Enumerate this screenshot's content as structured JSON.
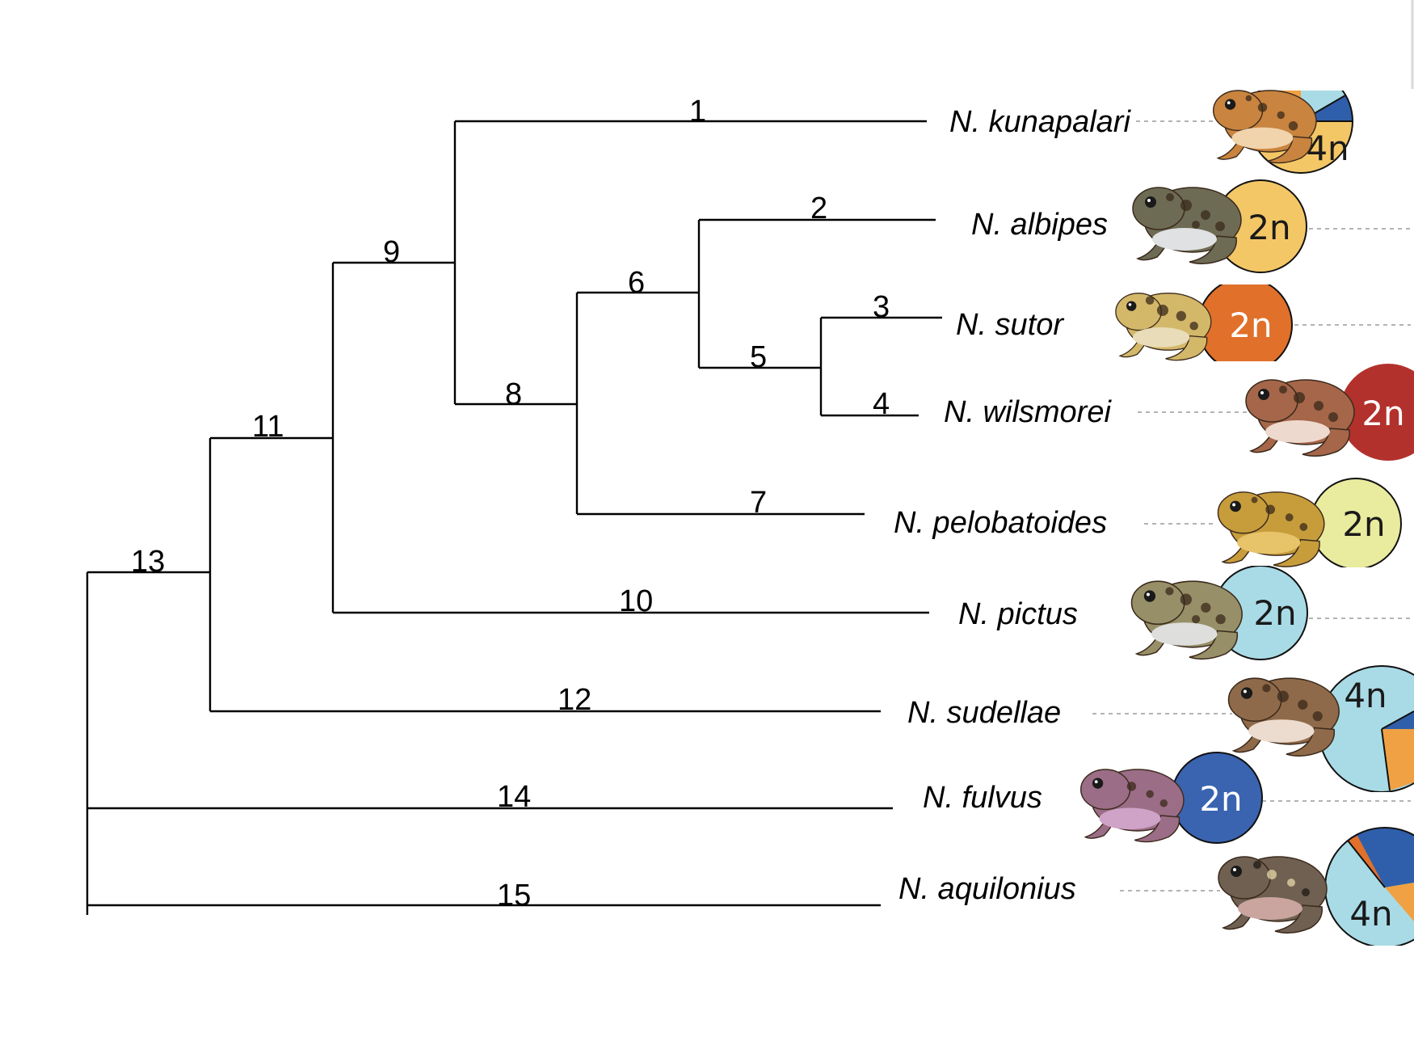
{
  "tree": {
    "nodes": [
      {
        "id": "1"
      },
      {
        "id": "2"
      },
      {
        "id": "3"
      },
      {
        "id": "4"
      },
      {
        "id": "5"
      },
      {
        "id": "6"
      },
      {
        "id": "7"
      },
      {
        "id": "8"
      },
      {
        "id": "9"
      },
      {
        "id": "10"
      },
      {
        "id": "11"
      },
      {
        "id": "12"
      },
      {
        "id": "13"
      },
      {
        "id": "14"
      },
      {
        "id": "15"
      }
    ]
  },
  "taxa": [
    {
      "name": "N. kunapalari",
      "ploidy": "4n",
      "colors": {
        "main": "#f4c766",
        "a": "#a9dbe6",
        "b": "#f0a143",
        "c": "#2f5faa"
      },
      "frog": {
        "skin": "#c9843f",
        "belly": "#f1d3ac"
      }
    },
    {
      "name": "N. albipes",
      "ploidy": "2n",
      "colors": {
        "main": "#f4c766"
      },
      "frog": {
        "skin": "#6e6b55",
        "belly": "#dfe1e3"
      }
    },
    {
      "name": "N. sutor",
      "ploidy": "2n",
      "colors": {
        "main": "#e0702a"
      },
      "frog": {
        "skin": "#d3b86a",
        "belly": "#e9dcb8"
      }
    },
    {
      "name": "N. wilsmorei",
      "ploidy": "2n",
      "colors": {
        "main": "#b3312c"
      },
      "frog": {
        "skin": "#a5664a",
        "belly": "#eed9cf"
      }
    },
    {
      "name": "N. pelobatoides",
      "ploidy": "2n",
      "colors": {
        "main": "#e9eb9e"
      },
      "frog": {
        "skin": "#c79d3c",
        "belly": "#e7c46a"
      }
    },
    {
      "name": "N. pictus",
      "ploidy": "2n",
      "colors": {
        "main": "#a9dbe6"
      },
      "frog": {
        "skin": "#978f67",
        "belly": "#dedfdd"
      }
    },
    {
      "name": "N. sudellae",
      "ploidy": "4n",
      "colors": {
        "main": "#a9dbe6",
        "a": "#f0a143",
        "b": "#2f5faa"
      },
      "frog": {
        "skin": "#8f6a4a",
        "belly": "#ecdccf"
      }
    },
    {
      "name": "N. fulvus",
      "ploidy": "2n",
      "colors": {
        "main": "#3a64b0"
      },
      "frog": {
        "skin": "#9b6d86",
        "belly": "#cfa3c7"
      }
    },
    {
      "name": "N. aquilonius",
      "ploidy": "4n",
      "colors": {
        "main": "#a9dbe6",
        "a": "#2f5faa",
        "b": "#f0a143",
        "c": "#e0702a"
      },
      "frog": {
        "skin": "#6f6052",
        "belly": "#caa5a0"
      }
    }
  ]
}
